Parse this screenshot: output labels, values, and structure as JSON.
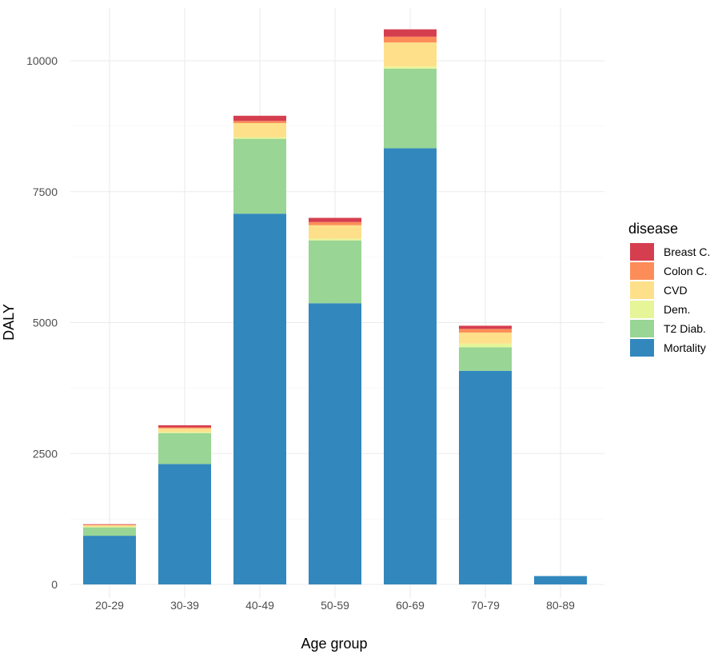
{
  "chart_data": {
    "type": "bar",
    "stacked": true,
    "xlabel": "Age group",
    "ylabel": "DALY",
    "ylim": [
      0,
      10800
    ],
    "yticks": [
      0,
      2500,
      5000,
      7500,
      10000
    ],
    "categories": [
      "20-29",
      "30-39",
      "40-49",
      "50-59",
      "60-69",
      "70-79",
      "80-89"
    ],
    "legend": {
      "title": "disease",
      "position": "right"
    },
    "grid": true,
    "series": [
      {
        "name": "Mortality",
        "color": "#3288bd",
        "values": [
          930,
          2300,
          7080,
          5370,
          8330,
          4080,
          160
        ]
      },
      {
        "name": "T2 Diab.",
        "color": "#99d594",
        "values": [
          160,
          590,
          1430,
          1200,
          1520,
          450,
          0
        ]
      },
      {
        "name": "Dem.",
        "color": "#e6f598",
        "values": [
          10,
          20,
          30,
          30,
          40,
          70,
          0
        ]
      },
      {
        "name": "CVD",
        "color": "#fee08b",
        "values": [
          30,
          70,
          270,
          260,
          460,
          210,
          0
        ]
      },
      {
        "name": "Colon C.",
        "color": "#fc8d59",
        "values": [
          10,
          20,
          40,
          60,
          110,
          70,
          0
        ]
      },
      {
        "name": "Breast C.",
        "color": "#d53e4f",
        "values": [
          10,
          40,
          100,
          80,
          140,
          60,
          0
        ]
      }
    ]
  }
}
